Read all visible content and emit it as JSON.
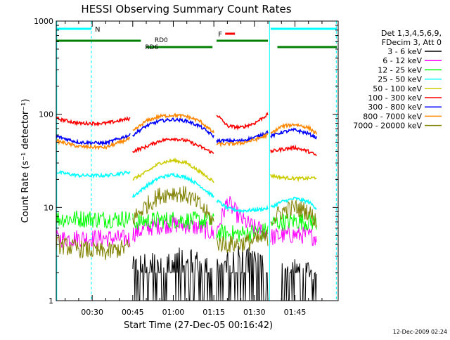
{
  "chart_data": {
    "type": "line",
    "title": "HESSI Observing Summary Count Rates",
    "xlabel": "Start Time (27-Dec-05 00:16:42)",
    "ylabel": "Count Rate (s⁻¹ detector⁻¹)",
    "yscale": "log",
    "ylim": [
      1,
      1000
    ],
    "xlim_min": [
      16.7,
      121
    ],
    "y_ticks": [
      {
        "v": 1,
        "label": "1"
      },
      {
        "v": 10,
        "label": "10"
      },
      {
        "v": 100,
        "label": "100"
      },
      {
        "v": 1000,
        "label": "1000"
      }
    ],
    "x_ticks": [
      {
        "t": 30,
        "label": "00:30"
      },
      {
        "t": 45,
        "label": "00:45"
      },
      {
        "t": 60,
        "label": "01:00"
      },
      {
        "t": 75,
        "label": "01:15"
      },
      {
        "t": 90,
        "label": "01:30"
      },
      {
        "t": 105,
        "label": "01:45"
      }
    ],
    "legend_header": [
      "Det 1,3,4,5,6,9,",
      "FDecim 3, Att 0"
    ],
    "legend_position": "right",
    "series": [
      {
        "name": "3 - 6 keV",
        "color": "#000000",
        "style": "noisy-bits",
        "segments": [
          {
            "x": [
              45,
              50,
              55,
              60,
              65,
              70,
              75
            ],
            "y": [
              2.3,
              2.6,
              2.8,
              2.9,
              2.8,
              2.6,
              2.2
            ]
          },
          {
            "x": [
              76,
              80,
              85,
              90,
              95
            ],
            "y": [
              2.4,
              2.9,
              3.1,
              2.9,
              2.3
            ]
          },
          {
            "x": [
              100,
              105,
              110,
              113
            ],
            "y": [
              2.0,
              2.2,
              2.1,
              1.9
            ]
          }
        ]
      },
      {
        "name": "6 - 12 keV",
        "color": "#ff00ff",
        "style": "noisy",
        "segments": [
          {
            "x": [
              16.7,
              25,
              35,
              44
            ],
            "y": [
              4.6,
              4.7,
              4.7,
              4.6
            ]
          },
          {
            "x": [
              45,
              50,
              55,
              60,
              65,
              70,
              75
            ],
            "y": [
              5.2,
              6.0,
              6.4,
              6.6,
              6.4,
              6.0,
              5.2
            ]
          },
          {
            "x": [
              76,
              80,
              85,
              90,
              95
            ],
            "y": [
              5.5,
              11.5,
              7.5,
              6.0,
              5.5
            ]
          },
          {
            "x": [
              96,
              100,
              105,
              110,
              113
            ],
            "y": [
              4.8,
              5.0,
              5.1,
              5.0,
              4.8
            ]
          }
        ]
      },
      {
        "name": "12 - 25 keV",
        "color": "#00ff00",
        "style": "noisy",
        "segments": [
          {
            "x": [
              16.7,
              25,
              35,
              44
            ],
            "y": [
              7.6,
              7.6,
              7.5,
              7.6
            ]
          },
          {
            "x": [
              45,
              50,
              55,
              60,
              65,
              70,
              75
            ],
            "y": [
              7.0,
              7.2,
              7.3,
              7.4,
              7.3,
              7.2,
              7.0
            ]
          },
          {
            "x": [
              76,
              80,
              85,
              90,
              95
            ],
            "y": [
              5.4,
              5.2,
              5.2,
              5.4,
              5.6
            ]
          },
          {
            "x": [
              96,
              100,
              105,
              110,
              113
            ],
            "y": [
              6.8,
              7.0,
              7.2,
              7.0,
              7.0
            ]
          }
        ]
      },
      {
        "name": "25 - 50 keV",
        "color": "#00ffff",
        "style": "smooth",
        "segments": [
          {
            "x": [
              16.7,
              25,
              35,
              44
            ],
            "y": [
              24,
              22,
              22,
              24
            ]
          },
          {
            "x": [
              45,
              50,
              55,
              60,
              65,
              70,
              75
            ],
            "y": [
              13,
              17,
              21,
              22.5,
              21,
              17,
              13
            ]
          },
          {
            "x": [
              76,
              80,
              85,
              90,
              95
            ],
            "y": [
              12,
              9.8,
              9.2,
              9.4,
              9.8
            ]
          },
          {
            "x": [
              96,
              100,
              105,
              110,
              113
            ],
            "y": [
              10,
              11.5,
              12.5,
              11.5,
              9.8
            ]
          }
        ]
      },
      {
        "name": "50 - 100 keV",
        "color": "#cccc00",
        "style": "smooth",
        "segments": [
          {
            "x": [
              45,
              50,
              55,
              60,
              65,
              70,
              75
            ],
            "y": [
              20,
              24,
              30,
              32,
              30,
              24,
              19
            ]
          },
          {
            "x": [
              96,
              100,
              105,
              110,
              113
            ],
            "y": [
              22,
              21,
              20.5,
              20.5,
              21
            ]
          }
        ]
      },
      {
        "name": "100 - 300 keV",
        "color": "#ff0000",
        "style": "smooth",
        "segments": [
          {
            "x": [
              16.7,
              25,
              35,
              44
            ],
            "y": [
              90,
              80,
              80,
              90
            ]
          },
          {
            "x": [
              45,
              50,
              55,
              60,
              65,
              70,
              75
            ],
            "y": [
              40,
              45,
              52,
              55,
              52,
              45,
              38
            ]
          },
          {
            "x": [
              76,
              80,
              85,
              90,
              95
            ],
            "y": [
              100,
              75,
              72,
              80,
              100
            ]
          },
          {
            "x": [
              96,
              100,
              105,
              110,
              113
            ],
            "y": [
              40,
              42,
              44,
              40,
              36
            ]
          }
        ]
      },
      {
        "name": "300 - 800 keV",
        "color": "#0000ff",
        "style": "smooth",
        "segments": [
          {
            "x": [
              16.7,
              25,
              35,
              44
            ],
            "y": [
              58,
              50,
              49,
              60
            ]
          },
          {
            "x": [
              45,
              50,
              55,
              60,
              65,
              70,
              75
            ],
            "y": [
              60,
              75,
              85,
              88,
              85,
              74,
              58
            ]
          },
          {
            "x": [
              76,
              80,
              85,
              90,
              95
            ],
            "y": [
              52,
              52,
              52,
              56,
              65
            ]
          },
          {
            "x": [
              96,
              100,
              105,
              110,
              113
            ],
            "y": [
              58,
              64,
              68,
              62,
              56
            ]
          }
        ]
      },
      {
        "name": "800 - 7000 keV",
        "color": "#ff8800",
        "style": "smooth",
        "segments": [
          {
            "x": [
              16.7,
              25,
              35,
              44
            ],
            "y": [
              52,
              45,
              44,
              55
            ]
          },
          {
            "x": [
              45,
              50,
              55,
              60,
              65,
              70,
              75
            ],
            "y": [
              65,
              85,
              95,
              98,
              95,
              84,
              63
            ]
          },
          {
            "x": [
              76,
              80,
              85,
              90,
              95
            ],
            "y": [
              48,
              48,
              49,
              53,
              60
            ]
          },
          {
            "x": [
              96,
              100,
              105,
              110,
              113
            ],
            "y": [
              62,
              74,
              78,
              72,
              62
            ]
          }
        ]
      },
      {
        "name": "7000 - 20000 keV",
        "color": "#808000",
        "style": "noisy",
        "segments": [
          {
            "x": [
              16.7,
              25,
              35,
              44
            ],
            "y": [
              4.0,
              3.6,
              3.3,
              3.8
            ]
          },
          {
            "x": [
              45,
              50,
              55,
              60,
              65,
              70,
              75
            ],
            "y": [
              7.5,
              10.5,
              13.5,
              14.5,
              13.5,
              10.5,
              7.0
            ]
          },
          {
            "x": [
              76,
              80,
              85,
              90,
              95
            ],
            "y": [
              4.2,
              4.0,
              4.1,
              4.4,
              4.8
            ]
          },
          {
            "x": [
              96,
              100,
              105,
              110,
              113
            ],
            "y": [
              7.2,
              9.0,
              10.0,
              9.0,
              7.0
            ]
          }
        ]
      }
    ],
    "night_bars": [
      {
        "x1": 16.9,
        "x2": 29.7,
        "label": "N",
        "color": "#00ffff"
      },
      {
        "x1": 96.0,
        "x2": 120.5,
        "label": "",
        "color": "#00ffff"
      }
    ],
    "saa_bars": [
      {
        "x1": 16.7,
        "x2": 48.0,
        "color": "#008000"
      },
      {
        "x1": 50.0,
        "x2": 74.5,
        "color": "#008000"
      },
      {
        "x1": 76.0,
        "x2": 95.0,
        "color": "#008000"
      },
      {
        "x1": 98.5,
        "x2": 120.5,
        "color": "#008000"
      }
    ],
    "flare_marker": {
      "x1": 79.2,
      "x2": 82.8,
      "label": "F",
      "color": "#ff0000"
    },
    "annotations": [
      {
        "t": 51,
        "label": "RD0",
        "color": "#008000",
        "pos": "above"
      },
      {
        "t": 47.5,
        "label": "RD6",
        "color": "#008000",
        "pos": "below"
      }
    ],
    "vlines_solid": [
      16.9,
      95.6
    ],
    "vlines_dashed": [
      29.7,
      120.3
    ],
    "vline_color": "#00ffff",
    "footer_timestamp": "12-Dec-2009 02:24"
  }
}
